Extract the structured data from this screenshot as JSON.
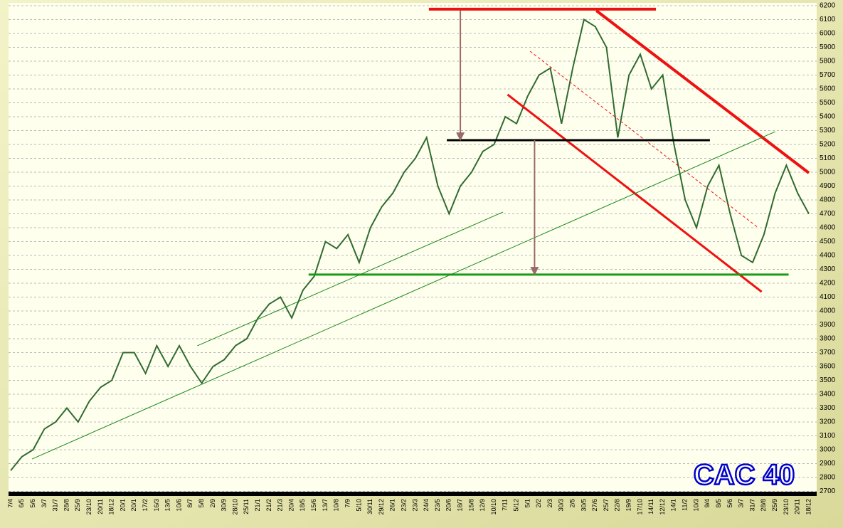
{
  "chart_data": {
    "type": "line",
    "title": "CAC 40",
    "categories": [
      "7/4",
      "6/5",
      "5/6",
      "3/7",
      "31/7",
      "28/8",
      "25/9",
      "23/10",
      "20/11",
      "18/12",
      "20/1",
      "20/1",
      "17/2",
      "16/3",
      "13/5",
      "10/6",
      "8/7",
      "5/8",
      "2/9",
      "30/9",
      "28/10",
      "25/11",
      "21/1",
      "21/2",
      "21/3",
      "20/4",
      "18/5",
      "15/6",
      "13/7",
      "10/8",
      "7/9",
      "5/10",
      "30/11",
      "29/12",
      "26/1",
      "23/2",
      "23/3",
      "24/4",
      "23/5",
      "20/6",
      "18/7",
      "15/8",
      "12/9",
      "10/10",
      "7/11",
      "5/12",
      "5/1",
      "2/2",
      "2/3",
      "30/3",
      "2/5",
      "30/5",
      "27/6",
      "25/7",
      "22/8",
      "19/9",
      "17/10",
      "14/11",
      "12/12",
      "14/1",
      "11/2",
      "10/3",
      "9/4",
      "8/5",
      "5/6",
      "3/7",
      "31/7",
      "28/8",
      "25/9",
      "23/10",
      "20/11",
      "18/12"
    ],
    "series": [
      {
        "color": "#2f6b2f",
        "values": [
          2850,
          2950,
          3000,
          3150,
          3200,
          3300,
          3200,
          3350,
          3450,
          3500,
          3700,
          3700,
          3550,
          3750,
          3600,
          3750,
          3600,
          3480,
          3600,
          3650,
          3750,
          3800,
          3950,
          4050,
          4100,
          3950,
          4150,
          4250,
          4500,
          4450,
          4550,
          4350,
          4600,
          4750,
          4850,
          5000,
          5100,
          5250,
          4900,
          4700,
          4900,
          5000,
          5150,
          5200,
          5400,
          5350,
          5550,
          5700,
          5750,
          5350,
          5750,
          6100,
          6050,
          5900,
          5250,
          5700,
          5850,
          5600,
          5700,
          5200,
          4800,
          4600,
          4900,
          5050,
          4700,
          4400,
          4350,
          4550,
          4850,
          5050,
          4850,
          4700
        ]
      }
    ],
    "ylim": [
      2700,
      6200
    ],
    "yticks": [
      2700,
      2800,
      2900,
      3000,
      3100,
      3200,
      3300,
      3400,
      3500,
      3600,
      3700,
      3800,
      3900,
      4000,
      4100,
      4200,
      4300,
      4400,
      4500,
      4600,
      4700,
      4800,
      4900,
      5000,
      5100,
      5200,
      5300,
      5400,
      5500,
      5600,
      5700,
      5800,
      5900,
      6000,
      6100,
      6200
    ],
    "grid": true,
    "trend_lines": [
      {
        "color": "#ee1111",
        "width": 4,
        "from": [
          37.2,
          6175
        ],
        "to": [
          57.4,
          6175
        ]
      },
      {
        "color": "#ee1111",
        "width": 4,
        "from": [
          52.1,
          6164
        ],
        "to": [
          71.0,
          4995
        ]
      },
      {
        "color": "#ee1111",
        "width": 3,
        "from": [
          44.2,
          5559
        ],
        "to": [
          66.8,
          4138
        ]
      },
      {
        "color": "#ee1111",
        "width": 1,
        "dashed": true,
        "from": [
          46.2,
          5872
        ],
        "to": [
          66.5,
          4600
        ]
      },
      {
        "color": "#000000",
        "width": 3,
        "from": [
          38.8,
          5231
        ],
        "to": [
          62.2,
          5231
        ]
      },
      {
        "color": "#1a9a1a",
        "width": 3,
        "from": [
          26.5,
          4262
        ],
        "to": [
          69.2,
          4262
        ]
      },
      {
        "color": "#1a8a1a",
        "width": 1,
        "from": [
          1.9,
          2933
        ],
        "to": [
          68.0,
          5292
        ]
      },
      {
        "color": "#1a8a1a",
        "width": 1,
        "from": [
          16.6,
          3749
        ],
        "to": [
          43.8,
          4713
        ]
      },
      {
        "color": "#9a6a6a",
        "width": 2,
        "arrow": true,
        "from": [
          40.0,
          6164
        ],
        "to": [
          40.0,
          5231
        ]
      },
      {
        "color": "#9a6a6a",
        "width": 2,
        "arrow": true,
        "from": [
          46.6,
          5231
        ],
        "to": [
          46.6,
          4262
        ]
      }
    ]
  }
}
